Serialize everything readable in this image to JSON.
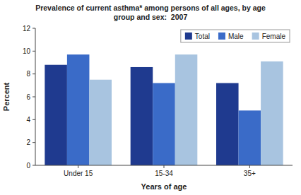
{
  "chart_data": {
    "type": "bar",
    "title": "Prevalence of current asthma* among persons of all ages, by age\ngroup and sex:  2007",
    "x_label": "Years of age",
    "y_label": "Percent",
    "categories": [
      "Under 15",
      "15-34",
      "35+"
    ],
    "series": [
      {
        "name": "Total",
        "color": "#1F3A8F",
        "values": [
          8.8,
          8.6,
          7.2
        ]
      },
      {
        "name": "Male",
        "color": "#3A6BC8",
        "values": [
          9.7,
          7.2,
          4.8
        ]
      },
      {
        "name": "Female",
        "color": "#A8C4E0",
        "values": [
          7.5,
          9.7,
          9.1
        ]
      }
    ],
    "ylim": [
      0,
      12
    ],
    "yticks": [
      0,
      2,
      4,
      6,
      8,
      10,
      12
    ],
    "grid": false,
    "legend": "upper right"
  }
}
